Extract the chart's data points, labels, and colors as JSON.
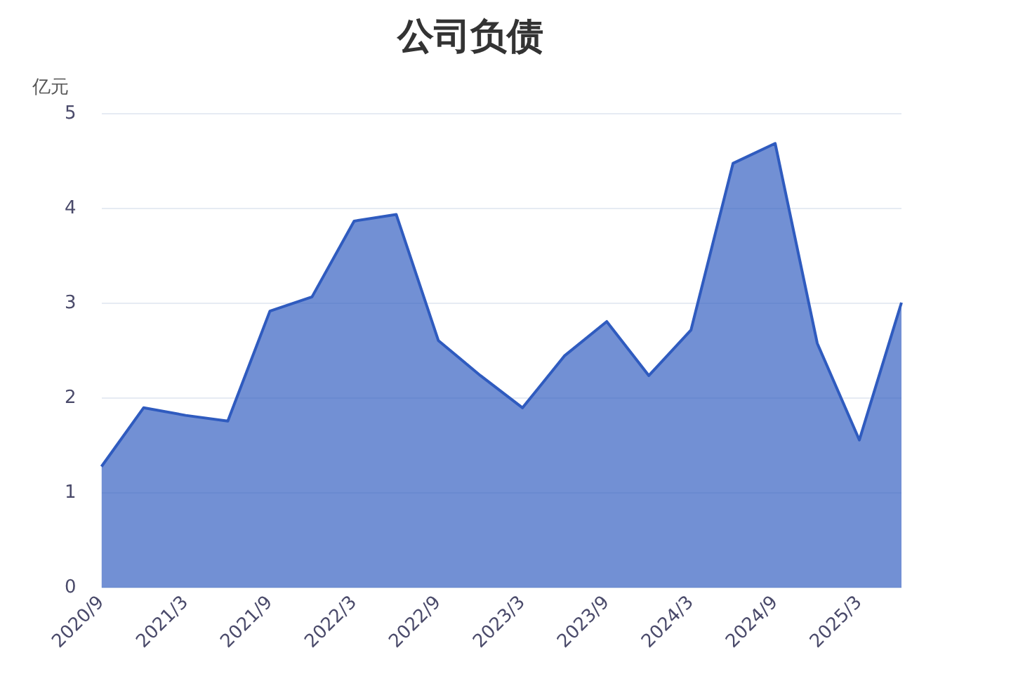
{
  "chart_data": {
    "type": "area",
    "title": "公司负债",
    "ylabel": "亿元",
    "categories": [
      "2020/9",
      null,
      "2021/3",
      null,
      "2021/9",
      null,
      "2022/3",
      null,
      "2022/9",
      null,
      "2023/3",
      null,
      "2023/9",
      null,
      "2024/3",
      null,
      "2024/9",
      null,
      "2025/3",
      null
    ],
    "series": [
      {
        "color": "#2f5bbf",
        "values": [
          1.28,
          1.9,
          1.82,
          1.76,
          2.92,
          3.07,
          3.87,
          3.94,
          2.61,
          2.24,
          1.9,
          2.45,
          2.81,
          2.24,
          2.72,
          4.48,
          4.69,
          2.58,
          1.56,
          3.01
        ]
      }
    ],
    "ylim": [
      0,
      5
    ],
    "yticks": [
      0,
      1,
      2,
      3,
      4,
      5
    ],
    "grid": "y",
    "legend": false
  }
}
